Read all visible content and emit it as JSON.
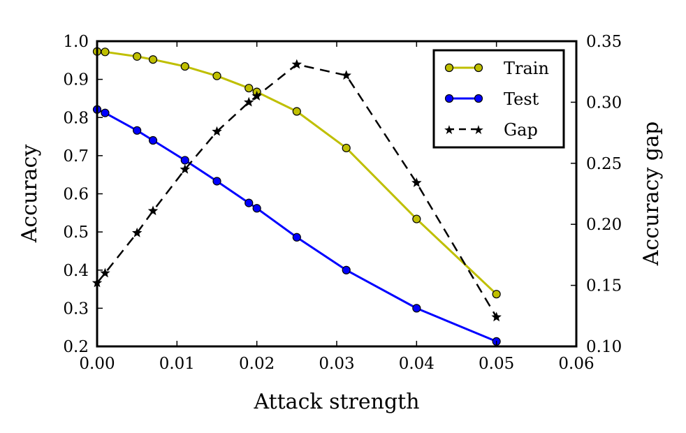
{
  "chart_data": {
    "type": "line",
    "title": "",
    "xlabel": "Attack strength",
    "ylabel": "Accuracy",
    "y2label": "Accuracy gap",
    "xlim": [
      0.0,
      0.06
    ],
    "ylim": [
      0.2,
      1.0
    ],
    "y2lim": [
      0.1,
      0.35
    ],
    "xticks": [
      "0.00",
      "0.01",
      "0.02",
      "0.03",
      "0.04",
      "0.05",
      "0.06"
    ],
    "yticks": [
      "0.2",
      "0.3",
      "0.4",
      "0.5",
      "0.6",
      "0.7",
      "0.8",
      "0.9",
      "1.0"
    ],
    "y2ticks": [
      "0.10",
      "0.15",
      "0.20",
      "0.25",
      "0.30",
      "0.35"
    ],
    "grid": false,
    "legend_position": "top-right",
    "series": [
      {
        "name": "Train",
        "axis": "left",
        "color": "#bfbf00",
        "marker": "circle",
        "line": "solid",
        "x": [
          0.0,
          0.001,
          0.005,
          0.007,
          0.011,
          0.015,
          0.019,
          0.02,
          0.025,
          0.0312,
          0.04,
          0.05
        ],
        "y": [
          0.973,
          0.972,
          0.96,
          0.952,
          0.934,
          0.909,
          0.877,
          0.867,
          0.816,
          0.72,
          0.534,
          0.337
        ]
      },
      {
        "name": "Test",
        "axis": "left",
        "color": "#0000ff",
        "marker": "circle",
        "line": "solid",
        "x": [
          0.0,
          0.001,
          0.005,
          0.007,
          0.011,
          0.015,
          0.019,
          0.02,
          0.025,
          0.0312,
          0.04,
          0.05
        ],
        "y": [
          0.821,
          0.812,
          0.766,
          0.74,
          0.688,
          0.633,
          0.576,
          0.562,
          0.486,
          0.4,
          0.3,
          0.213
        ]
      },
      {
        "name": "Gap",
        "axis": "right",
        "color": "#000000",
        "marker": "star",
        "line": "dashed",
        "x": [
          0.0,
          0.001,
          0.005,
          0.007,
          0.011,
          0.015,
          0.019,
          0.02,
          0.025,
          0.0312,
          0.04,
          0.05
        ],
        "y": [
          0.152,
          0.16,
          0.193,
          0.211,
          0.245,
          0.276,
          0.3,
          0.305,
          0.331,
          0.322,
          0.234,
          0.124
        ]
      }
    ]
  }
}
